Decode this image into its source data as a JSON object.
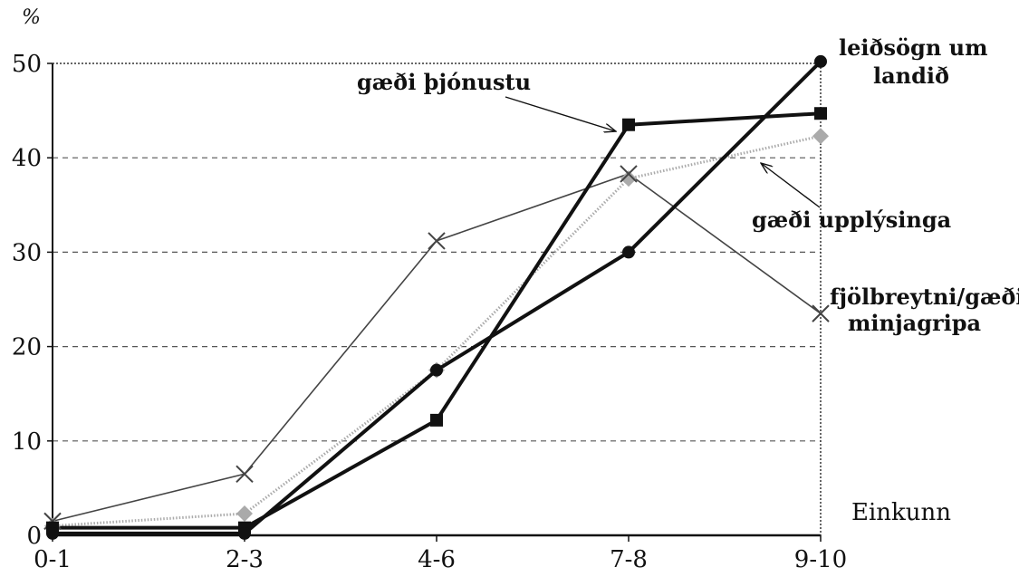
{
  "chart_data": {
    "type": "line",
    "title": "",
    "xlabel": "Einkunn",
    "ylabel": "%",
    "categories": [
      "0-1",
      "2-3",
      "4-6",
      "7-8",
      "9-10"
    ],
    "ylim": [
      0,
      50
    ],
    "yticks": [
      "0",
      "10",
      "20",
      "30",
      "40",
      "50"
    ],
    "grid": "horizontal dashed",
    "series": [
      {
        "name": "leiðsögn um landið",
        "values": [
          0.2,
          0.2,
          17.5,
          30.0,
          50.2
        ],
        "color": "#111111",
        "marker": "circle",
        "line": "thick"
      },
      {
        "name": "gæði þjónustu",
        "values": [
          0.8,
          0.8,
          12.2,
          43.5,
          44.7
        ],
        "color": "#111111",
        "marker": "square",
        "line": "thick"
      },
      {
        "name": "gæði upplýsinga",
        "values": [
          1.0,
          2.3,
          17.5,
          37.8,
          42.3
        ],
        "color": "#aaaaaa",
        "marker": "diamond",
        "line": "thin dotted"
      },
      {
        "name": "fjölbreytni/gæði minjagripa",
        "values": [
          1.5,
          6.5,
          31.2,
          38.3,
          23.5
        ],
        "color": "#444444",
        "marker": "x",
        "line": "thin"
      }
    ],
    "annotations": {
      "leidsogn_line1": "leiðsögn um",
      "leidsogn_line2": "landið",
      "thjonusta": "gæði þjónustu",
      "upplysinga": "gæði upplýsinga",
      "minjagripa_line1": "fjölbreytni/gæði",
      "minjagripa_line2": "minjagripa"
    }
  }
}
